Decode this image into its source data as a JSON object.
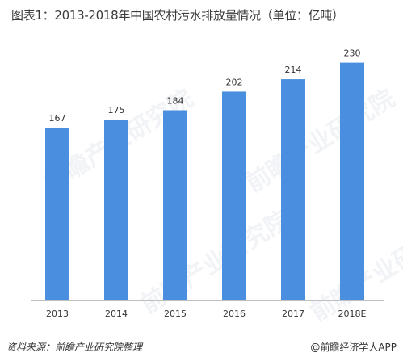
{
  "title": "图表1：2013-2018年中国农村污水排放量情况（单位：亿吨）",
  "watermark": "前瞻产业研究院",
  "source": "资料来源：前瞻产业研究院整理",
  "brand": "@前瞻经济学人APP",
  "chart_data": {
    "type": "bar",
    "title": "图表1：2013-2018年中国农村污水排放量情况（单位：亿吨）",
    "categories": [
      "2013",
      "2014",
      "2015",
      "2016",
      "2017",
      "2018E"
    ],
    "values": [
      167,
      175,
      184,
      202,
      214,
      230
    ],
    "ylim": [
      0,
      250
    ],
    "grid": false,
    "bar_color": "#4a8ee0",
    "axis_color": "#bfbfbf"
  }
}
